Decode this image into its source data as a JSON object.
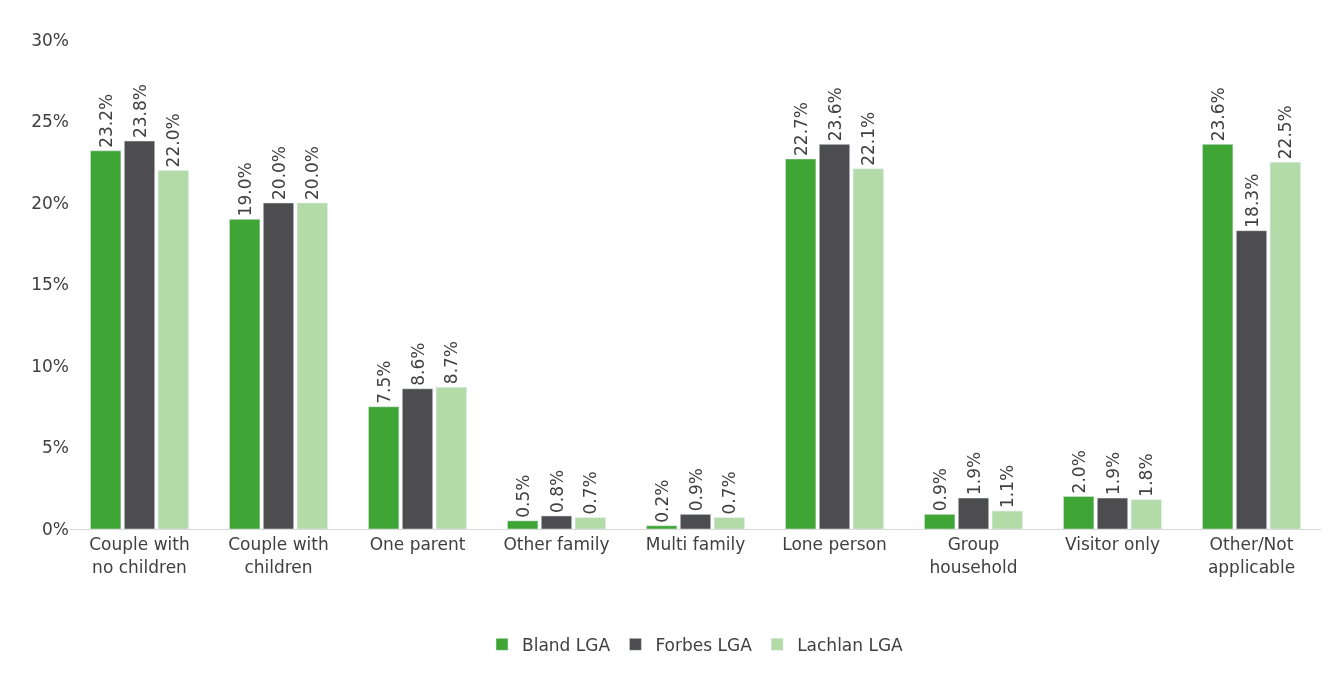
{
  "chart_data": {
    "type": "bar",
    "categories": [
      "Couple with no children",
      "Couple with children",
      "One parent",
      "Other family",
      "Multi family",
      "Lone person",
      "Group household",
      "Visitor only",
      "Other/Not applicable"
    ],
    "series": [
      {
        "name": "Bland LGA",
        "color": "#3fa535",
        "values": [
          23.2,
          19.0,
          7.5,
          0.5,
          0.2,
          22.7,
          0.9,
          2.0,
          23.6
        ],
        "value_labels": [
          "23.2%",
          "19.0%",
          "7.5%",
          "0.5%",
          "0.2%",
          "22.7%",
          "0.9%",
          "2.0%",
          "23.6%"
        ]
      },
      {
        "name": "Forbes LGA",
        "color": "#4d4d4f",
        "values": [
          23.8,
          20.0,
          8.6,
          0.8,
          0.9,
          23.6,
          1.9,
          1.9,
          18.3
        ],
        "value_labels": [
          "23.8%",
          "20.0%",
          "8.6%",
          "0.8%",
          "0.9%",
          "23.6%",
          "1.9%",
          "1.9%",
          "18.3%"
        ]
      },
      {
        "name": "Lachlan LGA",
        "color": "#b3dba8",
        "values": [
          22.0,
          20.0,
          8.7,
          0.7,
          0.7,
          22.1,
          1.1,
          1.8,
          22.5
        ],
        "value_labels": [
          "22.0%",
          "20.0%",
          "8.7%",
          "0.7%",
          "0.7%",
          "22.1%",
          "1.1%",
          "1.8%",
          "22.5%"
        ]
      }
    ],
    "ylim": [
      0,
      30
    ],
    "yticks": [
      {
        "value": 0,
        "label": "0%"
      },
      {
        "value": 5,
        "label": "5%"
      },
      {
        "value": 10,
        "label": "10%"
      },
      {
        "value": 15,
        "label": "15%"
      },
      {
        "value": 20,
        "label": "20%"
      },
      {
        "value": 25,
        "label": "25%"
      },
      {
        "value": 30,
        "label": "30%"
      }
    ],
    "grid": false,
    "legend": "bottom"
  }
}
